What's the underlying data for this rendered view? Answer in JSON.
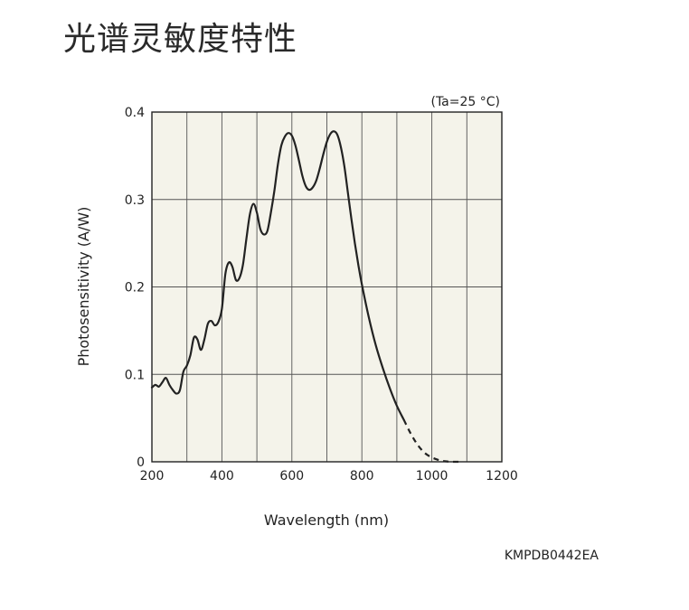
{
  "page": {
    "title": "光谱灵敏度特性"
  },
  "chart_data": {
    "type": "line",
    "title": "",
    "condition": "(Ta=25 °C)",
    "xlabel": "Wavelength (nm)",
    "ylabel": "Photosensitivity (A/W)",
    "xlim": [
      200,
      1200
    ],
    "ylim": [
      0,
      0.4
    ],
    "x_ticks": [
      200,
      400,
      600,
      800,
      1000,
      1200
    ],
    "x_tick_labels": [
      "200",
      "400",
      "600",
      "800",
      "1000",
      "1200"
    ],
    "y_ticks": [
      0,
      0.1,
      0.2,
      0.3,
      0.4
    ],
    "y_tick_labels": [
      "0",
      "0.1",
      "0.2",
      "0.3",
      "0.4"
    ],
    "x_minor_step": 100,
    "grid": true,
    "background_color": "#f4f3ea",
    "line_color": "#222222",
    "series": [
      {
        "style": "solid",
        "points": [
          [
            200,
            0.085
          ],
          [
            210,
            0.088
          ],
          [
            220,
            0.086
          ],
          [
            230,
            0.091
          ],
          [
            240,
            0.096
          ],
          [
            250,
            0.088
          ],
          [
            260,
            0.082
          ],
          [
            270,
            0.078
          ],
          [
            280,
            0.082
          ],
          [
            290,
            0.103
          ],
          [
            300,
            0.11
          ],
          [
            310,
            0.122
          ],
          [
            320,
            0.142
          ],
          [
            330,
            0.14
          ],
          [
            340,
            0.128
          ],
          [
            350,
            0.14
          ],
          [
            360,
            0.158
          ],
          [
            370,
            0.161
          ],
          [
            380,
            0.156
          ],
          [
            390,
            0.16
          ],
          [
            400,
            0.175
          ],
          [
            410,
            0.215
          ],
          [
            420,
            0.228
          ],
          [
            430,
            0.223
          ],
          [
            440,
            0.208
          ],
          [
            450,
            0.21
          ],
          [
            460,
            0.225
          ],
          [
            470,
            0.255
          ],
          [
            480,
            0.283
          ],
          [
            490,
            0.295
          ],
          [
            500,
            0.285
          ],
          [
            510,
            0.266
          ],
          [
            520,
            0.26
          ],
          [
            530,
            0.264
          ],
          [
            540,
            0.285
          ],
          [
            550,
            0.31
          ],
          [
            560,
            0.34
          ],
          [
            570,
            0.362
          ],
          [
            580,
            0.372
          ],
          [
            590,
            0.376
          ],
          [
            600,
            0.373
          ],
          [
            610,
            0.362
          ],
          [
            620,
            0.345
          ],
          [
            630,
            0.327
          ],
          [
            640,
            0.315
          ],
          [
            650,
            0.311
          ],
          [
            660,
            0.314
          ],
          [
            670,
            0.322
          ],
          [
            680,
            0.336
          ],
          [
            690,
            0.352
          ],
          [
            700,
            0.366
          ],
          [
            710,
            0.375
          ],
          [
            720,
            0.378
          ],
          [
            730,
            0.374
          ],
          [
            740,
            0.36
          ],
          [
            750,
            0.338
          ],
          [
            760,
            0.308
          ],
          [
            770,
            0.278
          ],
          [
            780,
            0.25
          ],
          [
            790,
            0.225
          ],
          [
            800,
            0.203
          ],
          [
            820,
            0.165
          ],
          [
            840,
            0.133
          ],
          [
            860,
            0.107
          ],
          [
            880,
            0.084
          ],
          [
            900,
            0.064
          ],
          [
            920,
            0.048
          ]
        ]
      },
      {
        "style": "dashed",
        "points": [
          [
            920,
            0.048
          ],
          [
            940,
            0.032
          ],
          [
            960,
            0.019
          ],
          [
            980,
            0.01
          ],
          [
            1000,
            0.005
          ],
          [
            1020,
            0.002
          ],
          [
            1040,
            0.0005
          ],
          [
            1060,
            0.0
          ],
          [
            1080,
            0.0
          ]
        ]
      }
    ]
  },
  "footer": {
    "code": "KMPDB0442EA"
  }
}
